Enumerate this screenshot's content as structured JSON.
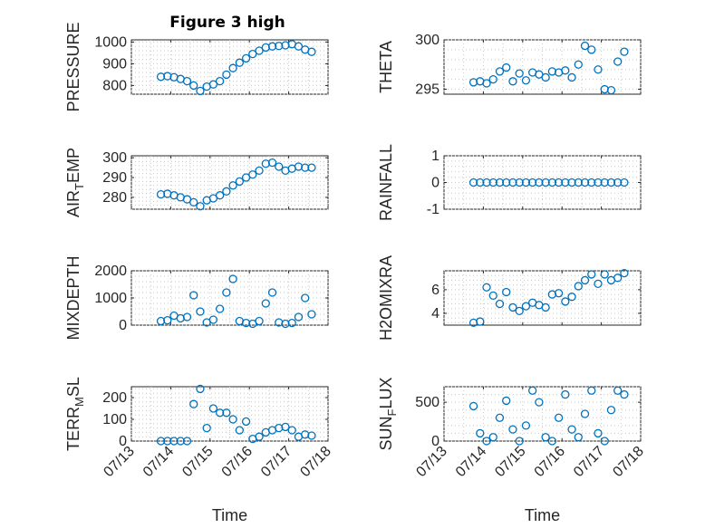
{
  "figure": {
    "title": "Figure 3 high",
    "marker_color": "#0072bd"
  },
  "chart_data": [
    {
      "type": "scatter",
      "ylabel": "PRESSURE",
      "ylim": [
        760,
        1010
      ],
      "yticks": [
        800,
        900,
        1000
      ],
      "x_ticklabels_visible": false,
      "x": [
        "2015-07-13T18:00",
        "2015-07-13T22:00",
        "2015-07-14T02:00",
        "2015-07-14T06:00",
        "2015-07-14T10:00",
        "2015-07-14T14:00",
        "2015-07-14T18:00",
        "2015-07-14T22:00",
        "2015-07-15T02:00",
        "2015-07-15T06:00",
        "2015-07-15T10:00",
        "2015-07-15T14:00",
        "2015-07-15T18:00",
        "2015-07-15T22:00",
        "2015-07-16T02:00",
        "2015-07-16T06:00",
        "2015-07-16T10:00",
        "2015-07-16T14:00",
        "2015-07-16T18:00",
        "2015-07-16T22:00",
        "2015-07-17T02:00",
        "2015-07-17T06:00",
        "2015-07-17T10:00",
        "2015-07-17T14:00"
      ],
      "y": [
        840,
        843,
        838,
        830,
        820,
        800,
        775,
        795,
        805,
        820,
        850,
        880,
        905,
        925,
        945,
        960,
        975,
        980,
        982,
        985,
        990,
        980,
        965,
        955
      ]
    },
    {
      "type": "scatter",
      "ylabel": "THETA",
      "ylim": [
        294.5,
        300
      ],
      "yticks": [
        295,
        300
      ],
      "x_ticklabels_visible": false,
      "x": [
        "2015-07-13T18:00",
        "2015-07-13T22:00",
        "2015-07-14T02:00",
        "2015-07-14T06:00",
        "2015-07-14T10:00",
        "2015-07-14T14:00",
        "2015-07-14T18:00",
        "2015-07-14T22:00",
        "2015-07-15T02:00",
        "2015-07-15T06:00",
        "2015-07-15T10:00",
        "2015-07-15T14:00",
        "2015-07-15T18:00",
        "2015-07-15T22:00",
        "2015-07-16T02:00",
        "2015-07-16T06:00",
        "2015-07-16T10:00",
        "2015-07-16T14:00",
        "2015-07-16T18:00",
        "2015-07-16T22:00",
        "2015-07-17T02:00",
        "2015-07-17T06:00",
        "2015-07-17T10:00",
        "2015-07-17T14:00"
      ],
      "y": [
        295.7,
        295.8,
        295.6,
        296.0,
        296.8,
        297.2,
        295.8,
        296.6,
        295.9,
        296.7,
        296.5,
        296.2,
        296.8,
        296.7,
        296.9,
        296.2,
        297.5,
        299.4,
        299.0,
        297.0,
        295.0,
        294.9,
        297.8,
        298.8
      ]
    },
    {
      "type": "scatter",
      "ylabel": "AIR_TEMP",
      "ylim": [
        274,
        301
      ],
      "yticks": [
        280,
        290,
        300
      ],
      "x_ticklabels_visible": false,
      "x": [
        "2015-07-13T18:00",
        "2015-07-13T22:00",
        "2015-07-14T02:00",
        "2015-07-14T06:00",
        "2015-07-14T10:00",
        "2015-07-14T14:00",
        "2015-07-14T18:00",
        "2015-07-14T22:00",
        "2015-07-15T02:00",
        "2015-07-15T06:00",
        "2015-07-15T10:00",
        "2015-07-15T14:00",
        "2015-07-15T18:00",
        "2015-07-15T22:00",
        "2015-07-16T02:00",
        "2015-07-16T06:00",
        "2015-07-16T10:00",
        "2015-07-16T14:00",
        "2015-07-16T18:00",
        "2015-07-16T22:00",
        "2015-07-17T02:00",
        "2015-07-17T06:00",
        "2015-07-17T10:00",
        "2015-07-17T14:00"
      ],
      "y": [
        281.5,
        281.8,
        281.0,
        280.0,
        279.0,
        277.5,
        275.5,
        278.5,
        279.5,
        281.0,
        283.0,
        286.0,
        288.0,
        290.0,
        291.5,
        293.5,
        297.0,
        297.5,
        295.5,
        293.5,
        294.5,
        295.5,
        295.0,
        295.0
      ]
    },
    {
      "type": "scatter",
      "ylabel": "RAINFALL",
      "ylim": [
        -1,
        1
      ],
      "yticks": [
        -1,
        0,
        1
      ],
      "x_ticklabels_visible": false,
      "x": [
        "2015-07-13T18:00",
        "2015-07-13T22:00",
        "2015-07-14T02:00",
        "2015-07-14T06:00",
        "2015-07-14T10:00",
        "2015-07-14T14:00",
        "2015-07-14T18:00",
        "2015-07-14T22:00",
        "2015-07-15T02:00",
        "2015-07-15T06:00",
        "2015-07-15T10:00",
        "2015-07-15T14:00",
        "2015-07-15T18:00",
        "2015-07-15T22:00",
        "2015-07-16T02:00",
        "2015-07-16T06:00",
        "2015-07-16T10:00",
        "2015-07-16T14:00",
        "2015-07-16T18:00",
        "2015-07-16T22:00",
        "2015-07-17T02:00",
        "2015-07-17T06:00",
        "2015-07-17T10:00",
        "2015-07-17T14:00"
      ],
      "y": [
        0,
        0,
        0,
        0,
        0,
        0,
        0,
        0,
        0,
        0,
        0,
        0,
        0,
        0,
        0,
        0,
        0,
        0,
        0,
        0,
        0,
        0,
        0,
        0
      ]
    },
    {
      "type": "scatter",
      "ylabel": "MIXDEPTH",
      "ylim": [
        0,
        2000
      ],
      "yticks": [
        0,
        1000,
        2000
      ],
      "x_ticklabels_visible": false,
      "x": [
        "2015-07-13T18:00",
        "2015-07-13T22:00",
        "2015-07-14T02:00",
        "2015-07-14T06:00",
        "2015-07-14T10:00",
        "2015-07-14T14:00",
        "2015-07-14T18:00",
        "2015-07-14T22:00",
        "2015-07-15T02:00",
        "2015-07-15T06:00",
        "2015-07-15T10:00",
        "2015-07-15T14:00",
        "2015-07-15T18:00",
        "2015-07-15T22:00",
        "2015-07-16T02:00",
        "2015-07-16T06:00",
        "2015-07-16T10:00",
        "2015-07-16T14:00",
        "2015-07-16T18:00",
        "2015-07-16T22:00",
        "2015-07-17T02:00",
        "2015-07-17T06:00",
        "2015-07-17T10:00",
        "2015-07-17T14:00"
      ],
      "y": [
        150,
        180,
        350,
        250,
        300,
        1100,
        500,
        100,
        200,
        600,
        1200,
        1700,
        150,
        80,
        50,
        150,
        800,
        1200,
        100,
        50,
        80,
        300,
        1000,
        400
      ]
    },
    {
      "type": "scatter",
      "ylabel": "H2OMIXRA",
      "ylim": [
        3,
        7.6
      ],
      "yticks": [
        4,
        6
      ],
      "x_ticklabels_visible": false,
      "x": [
        "2015-07-13T18:00",
        "2015-07-13T22:00",
        "2015-07-14T02:00",
        "2015-07-14T06:00",
        "2015-07-14T10:00",
        "2015-07-14T14:00",
        "2015-07-14T18:00",
        "2015-07-14T22:00",
        "2015-07-15T02:00",
        "2015-07-15T06:00",
        "2015-07-15T10:00",
        "2015-07-15T14:00",
        "2015-07-15T18:00",
        "2015-07-15T22:00",
        "2015-07-16T02:00",
        "2015-07-16T06:00",
        "2015-07-16T10:00",
        "2015-07-16T14:00",
        "2015-07-16T18:00",
        "2015-07-16T22:00",
        "2015-07-17T02:00",
        "2015-07-17T06:00",
        "2015-07-17T10:00",
        "2015-07-17T14:00"
      ],
      "y": [
        3.2,
        3.3,
        6.2,
        5.5,
        4.8,
        5.8,
        4.5,
        4.2,
        4.6,
        4.9,
        4.7,
        4.5,
        5.6,
        5.7,
        5.0,
        5.4,
        6.3,
        6.8,
        7.3,
        6.5,
        7.3,
        6.8,
        7.0,
        7.4
      ]
    },
    {
      "type": "scatter",
      "ylabel": "TERR_MSL",
      "ylim": [
        0,
        250
      ],
      "yticks": [
        0,
        100,
        200
      ],
      "x_ticklabels_visible": true,
      "xlabel": "Time",
      "x": [
        "2015-07-13T18:00",
        "2015-07-13T22:00",
        "2015-07-14T02:00",
        "2015-07-14T06:00",
        "2015-07-14T10:00",
        "2015-07-14T14:00",
        "2015-07-14T18:00",
        "2015-07-14T22:00",
        "2015-07-15T02:00",
        "2015-07-15T06:00",
        "2015-07-15T10:00",
        "2015-07-15T14:00",
        "2015-07-15T18:00",
        "2015-07-15T22:00",
        "2015-07-16T02:00",
        "2015-07-16T06:00",
        "2015-07-16T10:00",
        "2015-07-16T14:00",
        "2015-07-16T18:00",
        "2015-07-16T22:00",
        "2015-07-17T02:00",
        "2015-07-17T06:00",
        "2015-07-17T10:00",
        "2015-07-17T14:00"
      ],
      "y": [
        0,
        0,
        0,
        0,
        0,
        170,
        240,
        60,
        150,
        130,
        130,
        100,
        50,
        90,
        10,
        20,
        40,
        50,
        60,
        65,
        50,
        20,
        30,
        25
      ]
    },
    {
      "type": "scatter",
      "ylabel": "SUN_FLUX",
      "ylim": [
        0,
        700
      ],
      "yticks": [
        0,
        500
      ],
      "x_ticklabels_visible": true,
      "xlabel": "Time",
      "x": [
        "2015-07-13T18:00",
        "2015-07-13T22:00",
        "2015-07-14T02:00",
        "2015-07-14T06:00",
        "2015-07-14T10:00",
        "2015-07-14T14:00",
        "2015-07-14T18:00",
        "2015-07-14T22:00",
        "2015-07-15T02:00",
        "2015-07-15T06:00",
        "2015-07-15T10:00",
        "2015-07-15T14:00",
        "2015-07-15T18:00",
        "2015-07-15T22:00",
        "2015-07-16T02:00",
        "2015-07-16T06:00",
        "2015-07-16T10:00",
        "2015-07-16T14:00",
        "2015-07-16T18:00",
        "2015-07-16T22:00",
        "2015-07-17T02:00",
        "2015-07-17T06:00",
        "2015-07-17T10:00",
        "2015-07-17T14:00"
      ],
      "y": [
        450,
        100,
        0,
        50,
        300,
        520,
        150,
        0,
        200,
        650,
        500,
        50,
        0,
        300,
        600,
        150,
        50,
        350,
        650,
        100,
        0,
        400,
        650,
        600
      ]
    }
  ],
  "x_axis": {
    "start": "2015-07-13T00:00",
    "end": "2015-07-18T00:00",
    "tick_values": [
      "2015-07-13",
      "2015-07-14",
      "2015-07-15",
      "2015-07-16",
      "2015-07-17",
      "2015-07-18"
    ],
    "tick_labels": [
      "07/13",
      "07/14",
      "07/15",
      "07/16",
      "07/17",
      "07/18"
    ]
  }
}
